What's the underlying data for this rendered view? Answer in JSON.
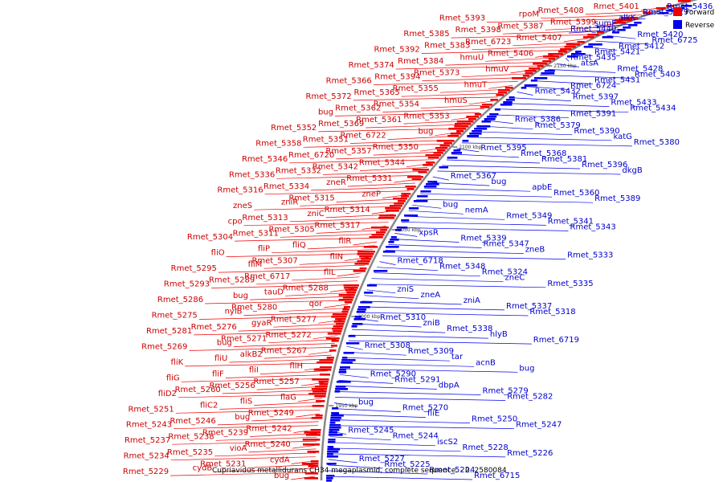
{
  "colors": {
    "forward": "#ee0000",
    "reverse": "#0000ee",
    "forward_label": "#cc0000",
    "reverse_label": "#0000cc",
    "backbone": "#888888"
  },
  "legend": {
    "forward": "Forward",
    "reverse": "Reverse"
  },
  "caption": "Cupriavidus metallidurans CH34 megaplasmid, complete sequence. - 0..2580084",
  "ticks": [
    "2150 kbp",
    "2100 kbp",
    "2050 kbp",
    "2000 kbp",
    "1950 kbp"
  ],
  "forward_labels": [
    "Rmet_5401",
    "Rmet_5408",
    "rpoM",
    "Rmet_5393",
    "Rmet_5399",
    "Rmet_5387",
    "Rmet_5398",
    "Rmet_5385",
    "Rmet_5407",
    "Rmet_6723",
    "Rmet_5383",
    "Rmet_5392",
    "Rmet_5406",
    "hmuU",
    "Rmet_5384",
    "Rmet_5374",
    "hmuV",
    "Rmet_5373",
    "Rmet_5394",
    "Rmet_5366",
    "hmuT",
    "Rmet_5355",
    "Rmet_5365",
    "Rmet_5372",
    "hmuS",
    "Rmet_5354",
    "Rmet_5362",
    "bug",
    "Rmet_5353",
    "Rmet_5361",
    "Rmet_5369",
    "Rmet_5352",
    "bug",
    "Rmet_6722",
    "Rmet_5351",
    "Rmet_5358",
    "Rmet_5350",
    "Rmet_5357",
    "Rmet_6720",
    "Rmet_5346",
    "Rmet_5344",
    "Rmet_5342",
    "Rmet_5332",
    "Rmet_5336",
    "Rmet_5331",
    "zneR",
    "Rmet_5334",
    "Rmet_5316",
    "zneP",
    "Rmet_5315",
    "zniR",
    "zneS",
    "Rmet_5314",
    "zniC",
    "Rmet_5313",
    "cpo",
    "Rmet_5317",
    "Rmet_5305",
    "Rmet_5311",
    "Rmet_5304",
    "fliR",
    "fliQ",
    "fliP",
    "fliO",
    "fliN",
    "Rmet_5307",
    "fliM",
    "Rmet_5295",
    "fliL",
    "Rmet_6717",
    "Rmet_5289",
    "Rmet_5293",
    "Rmet_5288",
    "tauD",
    "bug",
    "Rmet_5286",
    "qor",
    "Rmet_5280",
    "nylB",
    "Rmet_5275",
    "Rmet_5277",
    "gyaR",
    "Rmet_5276",
    "Rmet_5281",
    "Rmet_5272",
    "Rmet_5271",
    "bug",
    "Rmet_5269",
    "Rmet_5267",
    "alkB2",
    "fliU",
    "fliK",
    "fliH",
    "fliI",
    "fliF",
    "fliG",
    "Rmet_5257",
    "Rmet_5256",
    "Rmet_5260",
    "fliD2",
    "flaG",
    "fliS",
    "fliC2",
    "Rmet_5251",
    "Rmet_5249",
    "bug",
    "Rmet_5246",
    "Rmet_5243",
    "Rmet_5242",
    "Rmet_5239",
    "Rmet_5238",
    "Rmet_5237",
    "Rmet_5240",
    "vioA",
    "Rmet_5235",
    "Rmet_5234",
    "cydA",
    "Rmet_5231",
    "cydB",
    "Rmet_5229",
    "bug"
  ],
  "reverse_labels": [
    "Rmet_5436",
    "Rmet_5429",
    "alkK",
    "sumF",
    "Rmet_5440",
    "Rmet_5420",
    "Rmet_6725",
    "Rmet_5412",
    "Rmet_5421",
    "Rmet_5435",
    "atsA",
    "Rmet_5428",
    "Rmet_5403",
    "Rmet_5431",
    "Rmet_6724",
    "Rmet_5432",
    "Rmet_5397",
    "Rmet_5433",
    "Rmet_5434",
    "Rmet_5391",
    "Rmet_5386",
    "Rmet_5379",
    "Rmet_5390",
    "katG",
    "Rmet_5380",
    "Rmet_5395",
    "Rmet_5368",
    "Rmet_5381",
    "Rmet_5396",
    "dkgB",
    "Rmet_5367",
    "bug",
    "apbE",
    "Rmet_5360",
    "Rmet_5389",
    "bug",
    "nemA",
    "Rmet_5349",
    "Rmet_5341",
    "Rmet_5343",
    "xpsR",
    "Rmet_5339",
    "Rmet_5347",
    "zneB",
    "Rmet_5333",
    "Rmet_6718",
    "Rmet_5348",
    "Rmet_5324",
    "zneC",
    "Rmet_5335",
    "zniS",
    "zneA",
    "zniA",
    "Rmet_5337",
    "Rmet_5318",
    "Rmet_5310",
    "zniB",
    "Rmet_5338",
    "hlyB",
    "Rmet_6719",
    "Rmet_5308",
    "Rmet_5309",
    "tar",
    "acnB",
    "bug",
    "Rmet_5290",
    "Rmet_5291",
    "dbpA",
    "Rmet_5279",
    "Rmet_5282",
    "bug",
    "Rmet_5270",
    "fliE",
    "Rmet_5250",
    "Rmet_5247",
    "Rmet_5245",
    "Rmet_5244",
    "iscS2",
    "Rmet_5228",
    "Rmet_5226",
    "Rmet_5227",
    "Rmet_5225",
    "Rmet_5224",
    "Rmet_6715"
  ]
}
